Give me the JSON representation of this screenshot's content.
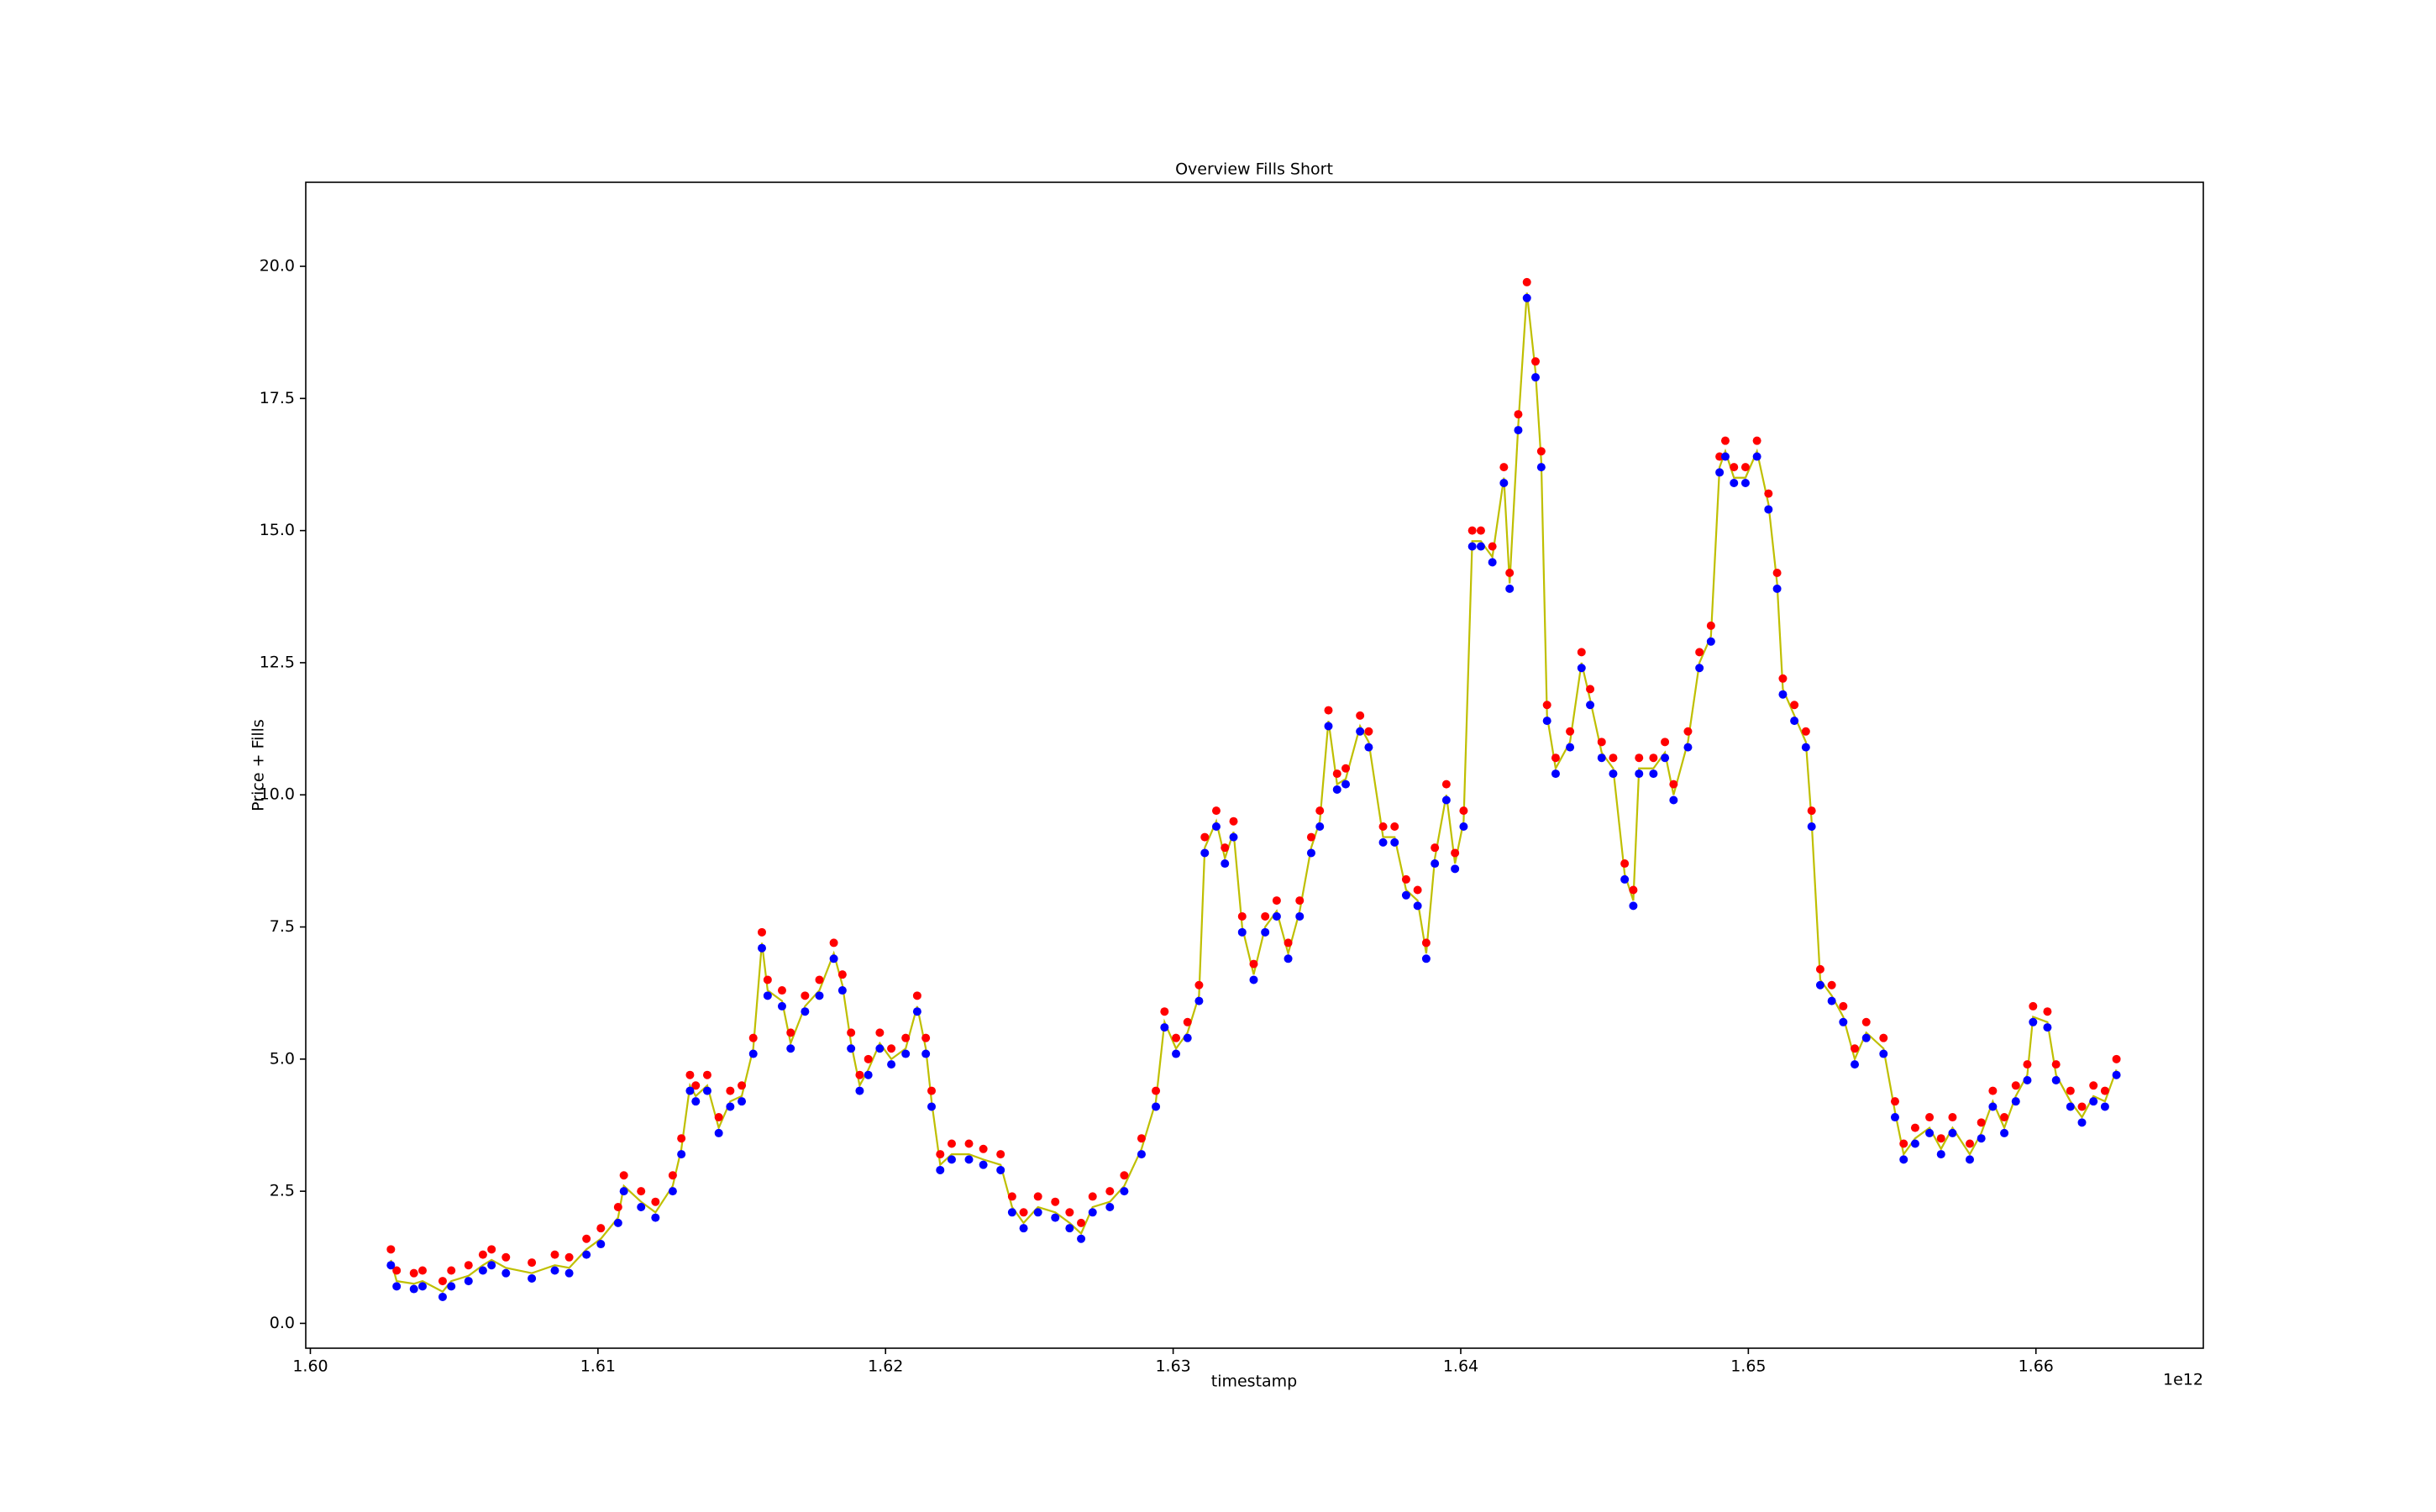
{
  "chart_data": {
    "type": "line",
    "title": "Overview Fills Short",
    "xlabel": "timestamp",
    "ylabel": "Price + Fills",
    "x_offset_label": "1e12",
    "xlim": [
      1.59984,
      1.66582
    ],
    "ylim": [
      -0.47,
      21.59
    ],
    "xticks": [
      {
        "value": 1.6,
        "label": "1.60"
      },
      {
        "value": 1.61,
        "label": "1.61"
      },
      {
        "value": 1.62,
        "label": "1.62"
      },
      {
        "value": 1.63,
        "label": "1.63"
      },
      {
        "value": 1.64,
        "label": "1.64"
      },
      {
        "value": 1.65,
        "label": "1.65"
      },
      {
        "value": 1.66,
        "label": "1.66"
      }
    ],
    "yticks": [
      {
        "value": 0,
        "label": "0.0"
      },
      2.5,
      {
        "value": 5,
        "label": "5.0"
      },
      7.5,
      {
        "value": 10,
        "label": "10.0"
      },
      12.5,
      {
        "value": 15,
        "label": "15.0"
      },
      17.5,
      {
        "value": 20,
        "label": "20.0"
      }
    ],
    "grid": false,
    "x": [
      1.6028,
      1.603,
      1.6036,
      1.6039,
      1.6046,
      1.6049,
      1.6055,
      1.606,
      1.6063,
      1.6068,
      1.6077,
      1.6085,
      1.609,
      1.6096,
      1.6101,
      1.6107,
      1.6109,
      1.6115,
      1.612,
      1.6126,
      1.6129,
      1.6132,
      1.6134,
      1.6138,
      1.6142,
      1.6146,
      1.615,
      1.6154,
      1.6157,
      1.6159,
      1.6164,
      1.6167,
      1.6172,
      1.6177,
      1.6182,
      1.6185,
      1.6188,
      1.6191,
      1.6194,
      1.6198,
      1.6202,
      1.6207,
      1.6211,
      1.6214,
      1.6216,
      1.6219,
      1.6223,
      1.6229,
      1.6234,
      1.624,
      1.6244,
      1.6248,
      1.6253,
      1.6259,
      1.6264,
      1.6268,
      1.6272,
      1.6278,
      1.6283,
      1.6289,
      1.6294,
      1.6297,
      1.6301,
      1.6305,
      1.6309,
      1.6311,
      1.6315,
      1.6318,
      1.6321,
      1.6324,
      1.6328,
      1.6332,
      1.6336,
      1.634,
      1.6344,
      1.6348,
      1.6351,
      1.6354,
      1.6357,
      1.636,
      1.6365,
      1.6368,
      1.6373,
      1.6377,
      1.6381,
      1.6385,
      1.6388,
      1.6391,
      1.6395,
      1.6398,
      1.6401,
      1.6404,
      1.6407,
      1.6411,
      1.6415,
      1.6417,
      1.642,
      1.6423,
      1.6426,
      1.6428,
      1.643,
      1.6433,
      1.6438,
      1.6442,
      1.6445,
      1.6449,
      1.6453,
      1.6457,
      1.646,
      1.6462,
      1.6467,
      1.6471,
      1.6474,
      1.6479,
      1.6483,
      1.6487,
      1.649,
      1.6492,
      1.6495,
      1.6499,
      1.6503,
      1.6507,
      1.651,
      1.6512,
      1.6516,
      1.652,
      1.6522,
      1.6525,
      1.6529,
      1.6533,
      1.6537,
      1.6541,
      1.6547,
      1.6551,
      1.6554,
      1.6558,
      1.6563,
      1.6567,
      1.6571,
      1.6577,
      1.6581,
      1.6585,
      1.6589,
      1.6593,
      1.6597,
      1.6599,
      1.6604,
      1.6607,
      1.6612,
      1.6616,
      1.662,
      1.6624,
      1.6628
    ],
    "series": [
      {
        "style": "line",
        "color": "#bfbf00",
        "values": [
          1.2,
          0.8,
          0.75,
          0.8,
          0.6,
          0.8,
          0.9,
          1.1,
          1.2,
          1.05,
          0.95,
          1.1,
          1.05,
          1.4,
          1.6,
          2.0,
          2.6,
          2.3,
          2.1,
          2.6,
          3.3,
          4.5,
          4.3,
          4.5,
          3.7,
          4.2,
          4.3,
          5.2,
          7.2,
          6.3,
          6.1,
          5.3,
          6.0,
          6.3,
          7.0,
          6.4,
          5.3,
          4.5,
          4.8,
          5.3,
          5.0,
          5.2,
          6.0,
          5.2,
          4.2,
          3.0,
          3.2,
          3.2,
          3.1,
          3.0,
          2.2,
          1.9,
          2.2,
          2.1,
          1.9,
          1.7,
          2.2,
          2.3,
          2.6,
          3.3,
          4.2,
          5.7,
          5.2,
          5.5,
          6.2,
          9.0,
          9.5,
          8.8,
          9.3,
          7.5,
          6.6,
          7.5,
          7.8,
          7.0,
          7.8,
          9.0,
          9.5,
          11.4,
          10.2,
          10.3,
          11.3,
          11.0,
          9.2,
          9.2,
          8.2,
          8.0,
          7.0,
          8.8,
          10.0,
          8.7,
          9.5,
          14.8,
          14.8,
          14.5,
          16.0,
          14.0,
          17.0,
          19.5,
          18.0,
          16.3,
          11.5,
          10.5,
          11.0,
          12.5,
          11.8,
          10.8,
          10.5,
          8.5,
          8.0,
          10.5,
          10.5,
          10.8,
          10.0,
          11.0,
          12.5,
          13.0,
          16.2,
          16.5,
          16.0,
          16.0,
          16.5,
          15.5,
          14.0,
          12.0,
          11.5,
          11.0,
          9.5,
          6.5,
          6.2,
          5.8,
          5.0,
          5.5,
          5.2,
          4.0,
          3.2,
          3.5,
          3.7,
          3.3,
          3.7,
          3.2,
          3.6,
          4.2,
          3.7,
          4.3,
          4.7,
          5.8,
          5.7,
          4.7,
          4.2,
          3.9,
          4.3,
          4.2,
          4.8
        ]
      },
      {
        "style": "markers",
        "color": "#ff0000",
        "values": [
          1.4,
          1.0,
          0.95,
          1.0,
          0.8,
          1.0,
          1.1,
          1.3,
          1.4,
          1.25,
          1.15,
          1.3,
          1.25,
          1.6,
          1.8,
          2.2,
          2.8,
          2.5,
          2.3,
          2.8,
          3.5,
          4.7,
          4.5,
          4.7,
          3.9,
          4.4,
          4.5,
          5.4,
          7.4,
          6.5,
          6.3,
          5.5,
          6.2,
          6.5,
          7.2,
          6.6,
          5.5,
          4.7,
          5.0,
          5.5,
          5.2,
          5.4,
          6.2,
          5.4,
          4.4,
          3.2,
          3.4,
          3.4,
          3.3,
          3.2,
          2.4,
          2.1,
          2.4,
          2.3,
          2.1,
          1.9,
          2.4,
          2.5,
          2.8,
          3.5,
          4.4,
          5.9,
          5.4,
          5.7,
          6.4,
          9.2,
          9.7,
          9.0,
          9.5,
          7.7,
          6.8,
          7.7,
          8.0,
          7.2,
          8.0,
          9.2,
          9.7,
          11.6,
          10.4,
          10.5,
          11.5,
          11.2,
          9.4,
          9.4,
          8.4,
          8.2,
          7.2,
          9.0,
          10.2,
          8.9,
          9.7,
          15.0,
          15.0,
          14.7,
          16.2,
          14.2,
          17.2,
          19.7,
          18.2,
          16.5,
          11.7,
          10.7,
          11.2,
          12.7,
          12.0,
          11.0,
          10.7,
          8.7,
          8.2,
          10.7,
          10.7,
          11.0,
          10.2,
          11.2,
          12.7,
          13.2,
          16.4,
          16.7,
          16.2,
          16.2,
          16.7,
          15.7,
          14.2,
          12.2,
          11.7,
          11.2,
          9.7,
          6.7,
          6.4,
          6.0,
          5.2,
          5.7,
          5.4,
          4.2,
          3.4,
          3.7,
          3.9,
          3.5,
          3.9,
          3.4,
          3.8,
          4.4,
          3.9,
          4.5,
          4.9,
          6.0,
          5.9,
          4.9,
          4.4,
          4.1,
          4.5,
          4.4,
          5.0
        ]
      },
      {
        "style": "markers",
        "color": "#0000ff",
        "values": [
          1.1,
          0.7,
          0.65,
          0.7,
          0.5,
          0.7,
          0.8,
          1.0,
          1.1,
          0.95,
          0.85,
          1.0,
          0.95,
          1.3,
          1.5,
          1.9,
          2.5,
          2.2,
          2.0,
          2.5,
          3.2,
          4.4,
          4.2,
          4.4,
          3.6,
          4.1,
          4.2,
          5.1,
          7.1,
          6.2,
          6.0,
          5.2,
          5.9,
          6.2,
          6.9,
          6.3,
          5.2,
          4.4,
          4.7,
          5.2,
          4.9,
          5.1,
          5.9,
          5.1,
          4.1,
          2.9,
          3.1,
          3.1,
          3.0,
          2.9,
          2.1,
          1.8,
          2.1,
          2.0,
          1.8,
          1.6,
          2.1,
          2.2,
          2.5,
          3.2,
          4.1,
          5.6,
          5.1,
          5.4,
          6.1,
          8.9,
          9.4,
          8.7,
          9.2,
          7.4,
          6.5,
          7.4,
          7.7,
          6.9,
          7.7,
          8.9,
          9.4,
          11.3,
          10.1,
          10.2,
          11.2,
          10.9,
          9.1,
          9.1,
          8.1,
          7.9,
          6.9,
          8.7,
          9.9,
          8.6,
          9.4,
          14.7,
          14.7,
          14.4,
          15.9,
          13.9,
          16.9,
          19.4,
          17.9,
          16.2,
          11.4,
          10.4,
          10.9,
          12.4,
          11.7,
          10.7,
          10.4,
          8.4,
          7.9,
          10.4,
          10.4,
          10.7,
          9.9,
          10.9,
          12.4,
          12.9,
          16.1,
          16.4,
          15.9,
          15.9,
          16.4,
          15.4,
          13.9,
          11.9,
          11.4,
          10.9,
          9.4,
          6.4,
          6.1,
          5.7,
          4.9,
          5.4,
          5.1,
          3.9,
          3.1,
          3.4,
          3.6,
          3.2,
          3.6,
          3.1,
          3.5,
          4.1,
          3.6,
          4.2,
          4.6,
          5.7,
          5.6,
          4.6,
          4.1,
          3.8,
          4.2,
          4.1,
          4.7
        ]
      }
    ]
  }
}
